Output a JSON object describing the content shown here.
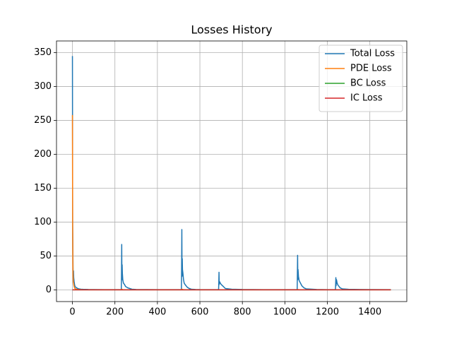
{
  "chart_data": {
    "type": "line",
    "title": "Losses History",
    "x": [
      0,
      1,
      2,
      3,
      4,
      5,
      6,
      8,
      10,
      12,
      15,
      20,
      25,
      30,
      40,
      50,
      75,
      100,
      150,
      200,
      230,
      231,
      232,
      233,
      234,
      235,
      237,
      240,
      245,
      250,
      260,
      270,
      280,
      300,
      350,
      400,
      450,
      500,
      513,
      514,
      515,
      516,
      517,
      518,
      520,
      523,
      526,
      530,
      540,
      550,
      560,
      580,
      600,
      650,
      688,
      689,
      690,
      691,
      693,
      696,
      700,
      710,
      720,
      750,
      800,
      900,
      1000,
      1058,
      1059,
      1060,
      1061,
      1062,
      1064,
      1067,
      1070,
      1080,
      1090,
      1100,
      1150,
      1200,
      1238,
      1239,
      1240,
      1241,
      1243,
      1246,
      1250,
      1260,
      1270,
      1300,
      1400,
      1499
    ],
    "series": [
      {
        "name": "Total Loss",
        "color": "#1f77b4",
        "values": [
          345,
          100,
          60,
          30,
          20,
          28,
          18,
          12,
          8,
          5,
          4,
          3,
          2,
          1.5,
          1,
          0.8,
          0.5,
          0.4,
          0.3,
          0.3,
          0.3,
          20,
          67,
          15,
          37,
          25,
          15,
          10,
          8,
          5,
          3,
          2,
          1,
          0.6,
          0.4,
          0.3,
          0.3,
          0.3,
          0.3,
          30,
          89,
          20,
          46,
          30,
          25,
          15,
          10,
          8,
          4,
          2,
          1,
          0.6,
          0.4,
          0.3,
          0.3,
          10,
          26,
          8,
          12,
          10,
          8,
          5,
          2,
          1,
          0.5,
          0.3,
          0.3,
          0.3,
          25,
          51,
          15,
          30,
          20,
          14,
          12,
          6,
          3,
          1.5,
          0.5,
          0.3,
          0.3,
          8,
          18,
          6,
          15,
          10,
          7,
          3,
          1.5,
          0.8,
          0.4,
          0.3
        ]
      },
      {
        "name": "PDE Loss",
        "color": "#ff7f0e",
        "values": [
          258,
          95,
          40,
          20,
          12,
          10,
          8,
          5,
          3,
          2,
          1.5,
          1,
          0.6,
          0.4,
          0.3,
          0.2,
          0.1,
          0.1,
          0.1,
          0.1,
          0.1,
          0.5,
          1,
          0.5,
          0.8,
          0.5,
          0.3,
          0.2,
          0.2,
          0.1,
          0.1,
          0.1,
          0.1,
          0.1,
          0.1,
          0.1,
          0.1,
          0.1,
          0.1,
          0.5,
          1.2,
          0.5,
          0.8,
          0.5,
          0.4,
          0.3,
          0.2,
          0.2,
          0.1,
          0.1,
          0.1,
          0.1,
          0.1,
          0.1,
          0.1,
          0.1,
          0.1,
          0.1,
          0.1,
          0.1,
          0.1,
          0.1,
          0.1,
          0.1,
          0.1,
          0.1,
          0.1,
          0.1,
          0.3,
          0.6,
          0.3,
          0.4,
          0.3,
          0.2,
          0.2,
          0.1,
          0.1,
          0.1,
          0.1,
          0.1,
          0.1,
          0.1,
          0.1,
          0.1,
          0.1,
          0.1,
          0.1,
          0.1,
          0.1,
          0.1,
          0.1,
          0.1
        ]
      },
      {
        "name": "BC Loss",
        "color": "#2ca02c",
        "values": [
          0,
          0,
          0,
          0,
          0,
          0,
          0,
          0,
          0,
          0,
          0,
          0,
          0,
          0,
          0,
          0,
          0,
          0,
          0,
          0,
          0,
          0,
          0,
          0,
          0,
          0,
          0,
          0,
          0,
          0,
          0,
          0,
          0,
          0,
          0,
          0,
          0,
          0,
          0,
          0,
          0,
          0,
          0,
          0,
          0,
          0,
          0,
          0,
          0,
          0,
          0,
          0,
          0,
          0,
          0,
          0,
          0,
          0,
          0,
          0,
          0,
          0,
          0,
          0,
          0,
          0,
          0,
          0,
          0,
          0,
          0,
          0,
          0,
          0,
          0,
          0,
          0,
          0,
          0,
          0,
          0,
          0,
          0,
          0,
          0,
          0,
          0,
          0,
          0,
          0,
          0,
          0
        ]
      },
      {
        "name": "IC Loss",
        "color": "#d62728",
        "values": [
          0,
          0,
          0,
          0,
          0,
          0,
          0,
          0,
          0,
          0,
          0,
          0,
          0,
          0,
          0,
          0,
          0,
          0,
          0,
          0,
          0,
          0,
          0,
          0,
          0,
          0,
          0,
          0,
          0,
          0,
          0,
          0,
          0,
          0,
          0,
          0,
          0,
          0,
          0,
          0,
          0,
          0,
          0,
          0,
          0,
          0,
          0,
          0,
          0,
          0,
          0,
          0,
          0,
          0,
          0,
          0,
          0,
          0,
          0,
          0,
          0,
          0,
          0,
          0,
          0,
          0,
          0,
          0,
          0,
          0,
          0,
          0,
          0,
          0,
          0,
          0,
          0,
          0,
          0,
          0,
          0,
          0,
          0,
          0,
          0,
          0,
          0,
          0,
          0,
          0,
          0,
          0
        ]
      }
    ],
    "xlim": [
      -75,
      1574
    ],
    "ylim": [
      -17.3,
      367.3
    ],
    "xticks": [
      0,
      200,
      400,
      600,
      800,
      1000,
      1200,
      1400
    ],
    "yticks": [
      0,
      50,
      100,
      150,
      200,
      250,
      300,
      350
    ],
    "grid": true,
    "legend": "upper right"
  }
}
